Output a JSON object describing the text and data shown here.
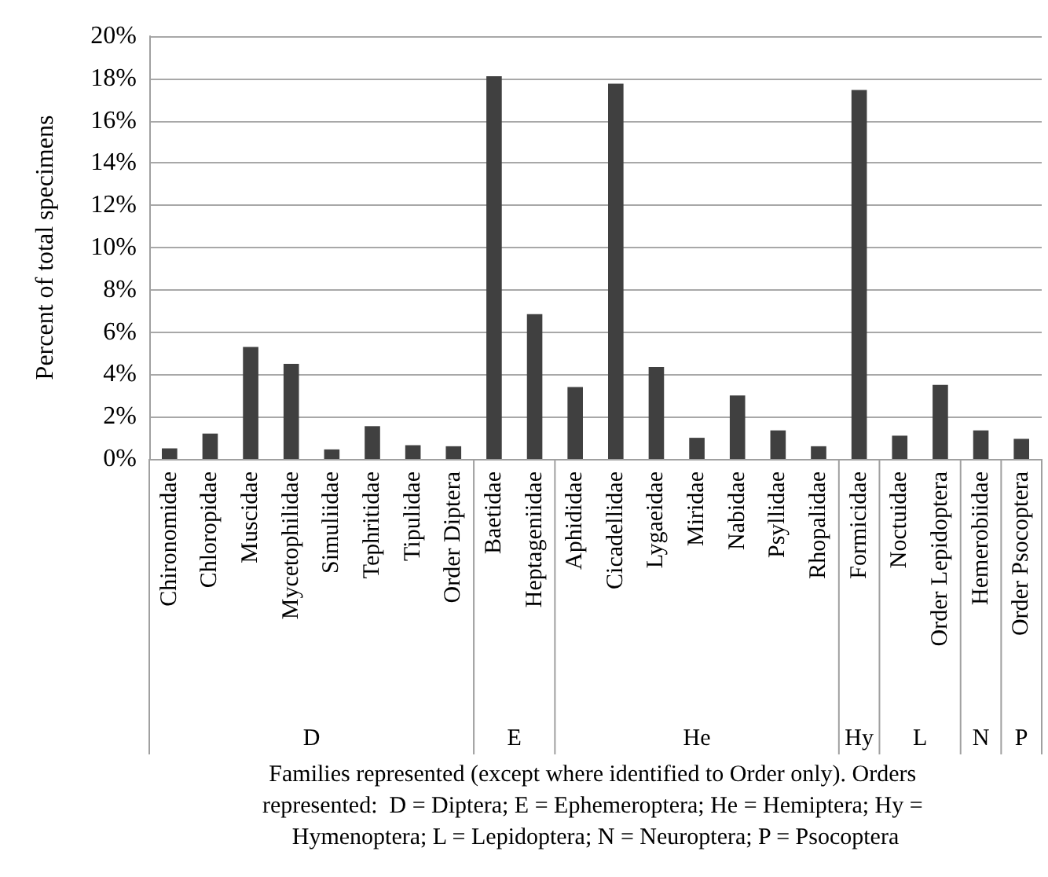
{
  "chart_data": {
    "type": "bar",
    "ylabel": "Percent of total specimens",
    "xlabel": "Families represented (except where identified to Order only). Orders represented:  D = Diptera; E = Ephemeroptera; He = Hemiptera; Hy = Hymenoptera; L = Lepidoptera; N = Neuroptera; P = Psocoptera",
    "categories": [
      "Chironomidae",
      "Chloropidae",
      "Muscidae",
      "Mycetophilidae",
      "Simuliidae",
      "Tephritidae",
      "Tipulidae",
      "Order Diptera",
      "Baetidae",
      "Heptageniidae",
      "Aphididae",
      "Cicadellidae",
      "Lygaeidae",
      "Miridae",
      "Nabidae",
      "Psyllidae",
      "Rhopalidae",
      "Formicidae",
      "Noctuidae",
      "Order Lepidoptera",
      "Hemerobiidae",
      "Order Psocoptera"
    ],
    "values": [
      0.5,
      1.2,
      5.3,
      4.5,
      0.45,
      1.55,
      0.65,
      0.6,
      18.1,
      6.85,
      3.4,
      17.75,
      4.35,
      1.0,
      3.0,
      1.35,
      0.6,
      17.45,
      1.1,
      3.5,
      1.35,
      0.95
    ],
    "color": "#404040",
    "ylim": [
      0,
      20
    ],
    "yticks": [
      {
        "value": 0,
        "label": "0%"
      },
      {
        "value": 2,
        "label": "2%"
      },
      {
        "value": 4,
        "label": "4%"
      },
      {
        "value": 6,
        "label": "6%"
      },
      {
        "value": 8,
        "label": "8%"
      },
      {
        "value": 10,
        "label": "10%"
      },
      {
        "value": 12,
        "label": "12%"
      },
      {
        "value": 14,
        "label": "14%"
      },
      {
        "value": 16,
        "label": "16%"
      },
      {
        "value": 18,
        "label": "18%"
      },
      {
        "value": 20,
        "label": "20%"
      }
    ],
    "grid": "y",
    "annotations": [
      "D",
      "E",
      "He",
      "Hy",
      "L",
      "N",
      "P"
    ]
  }
}
